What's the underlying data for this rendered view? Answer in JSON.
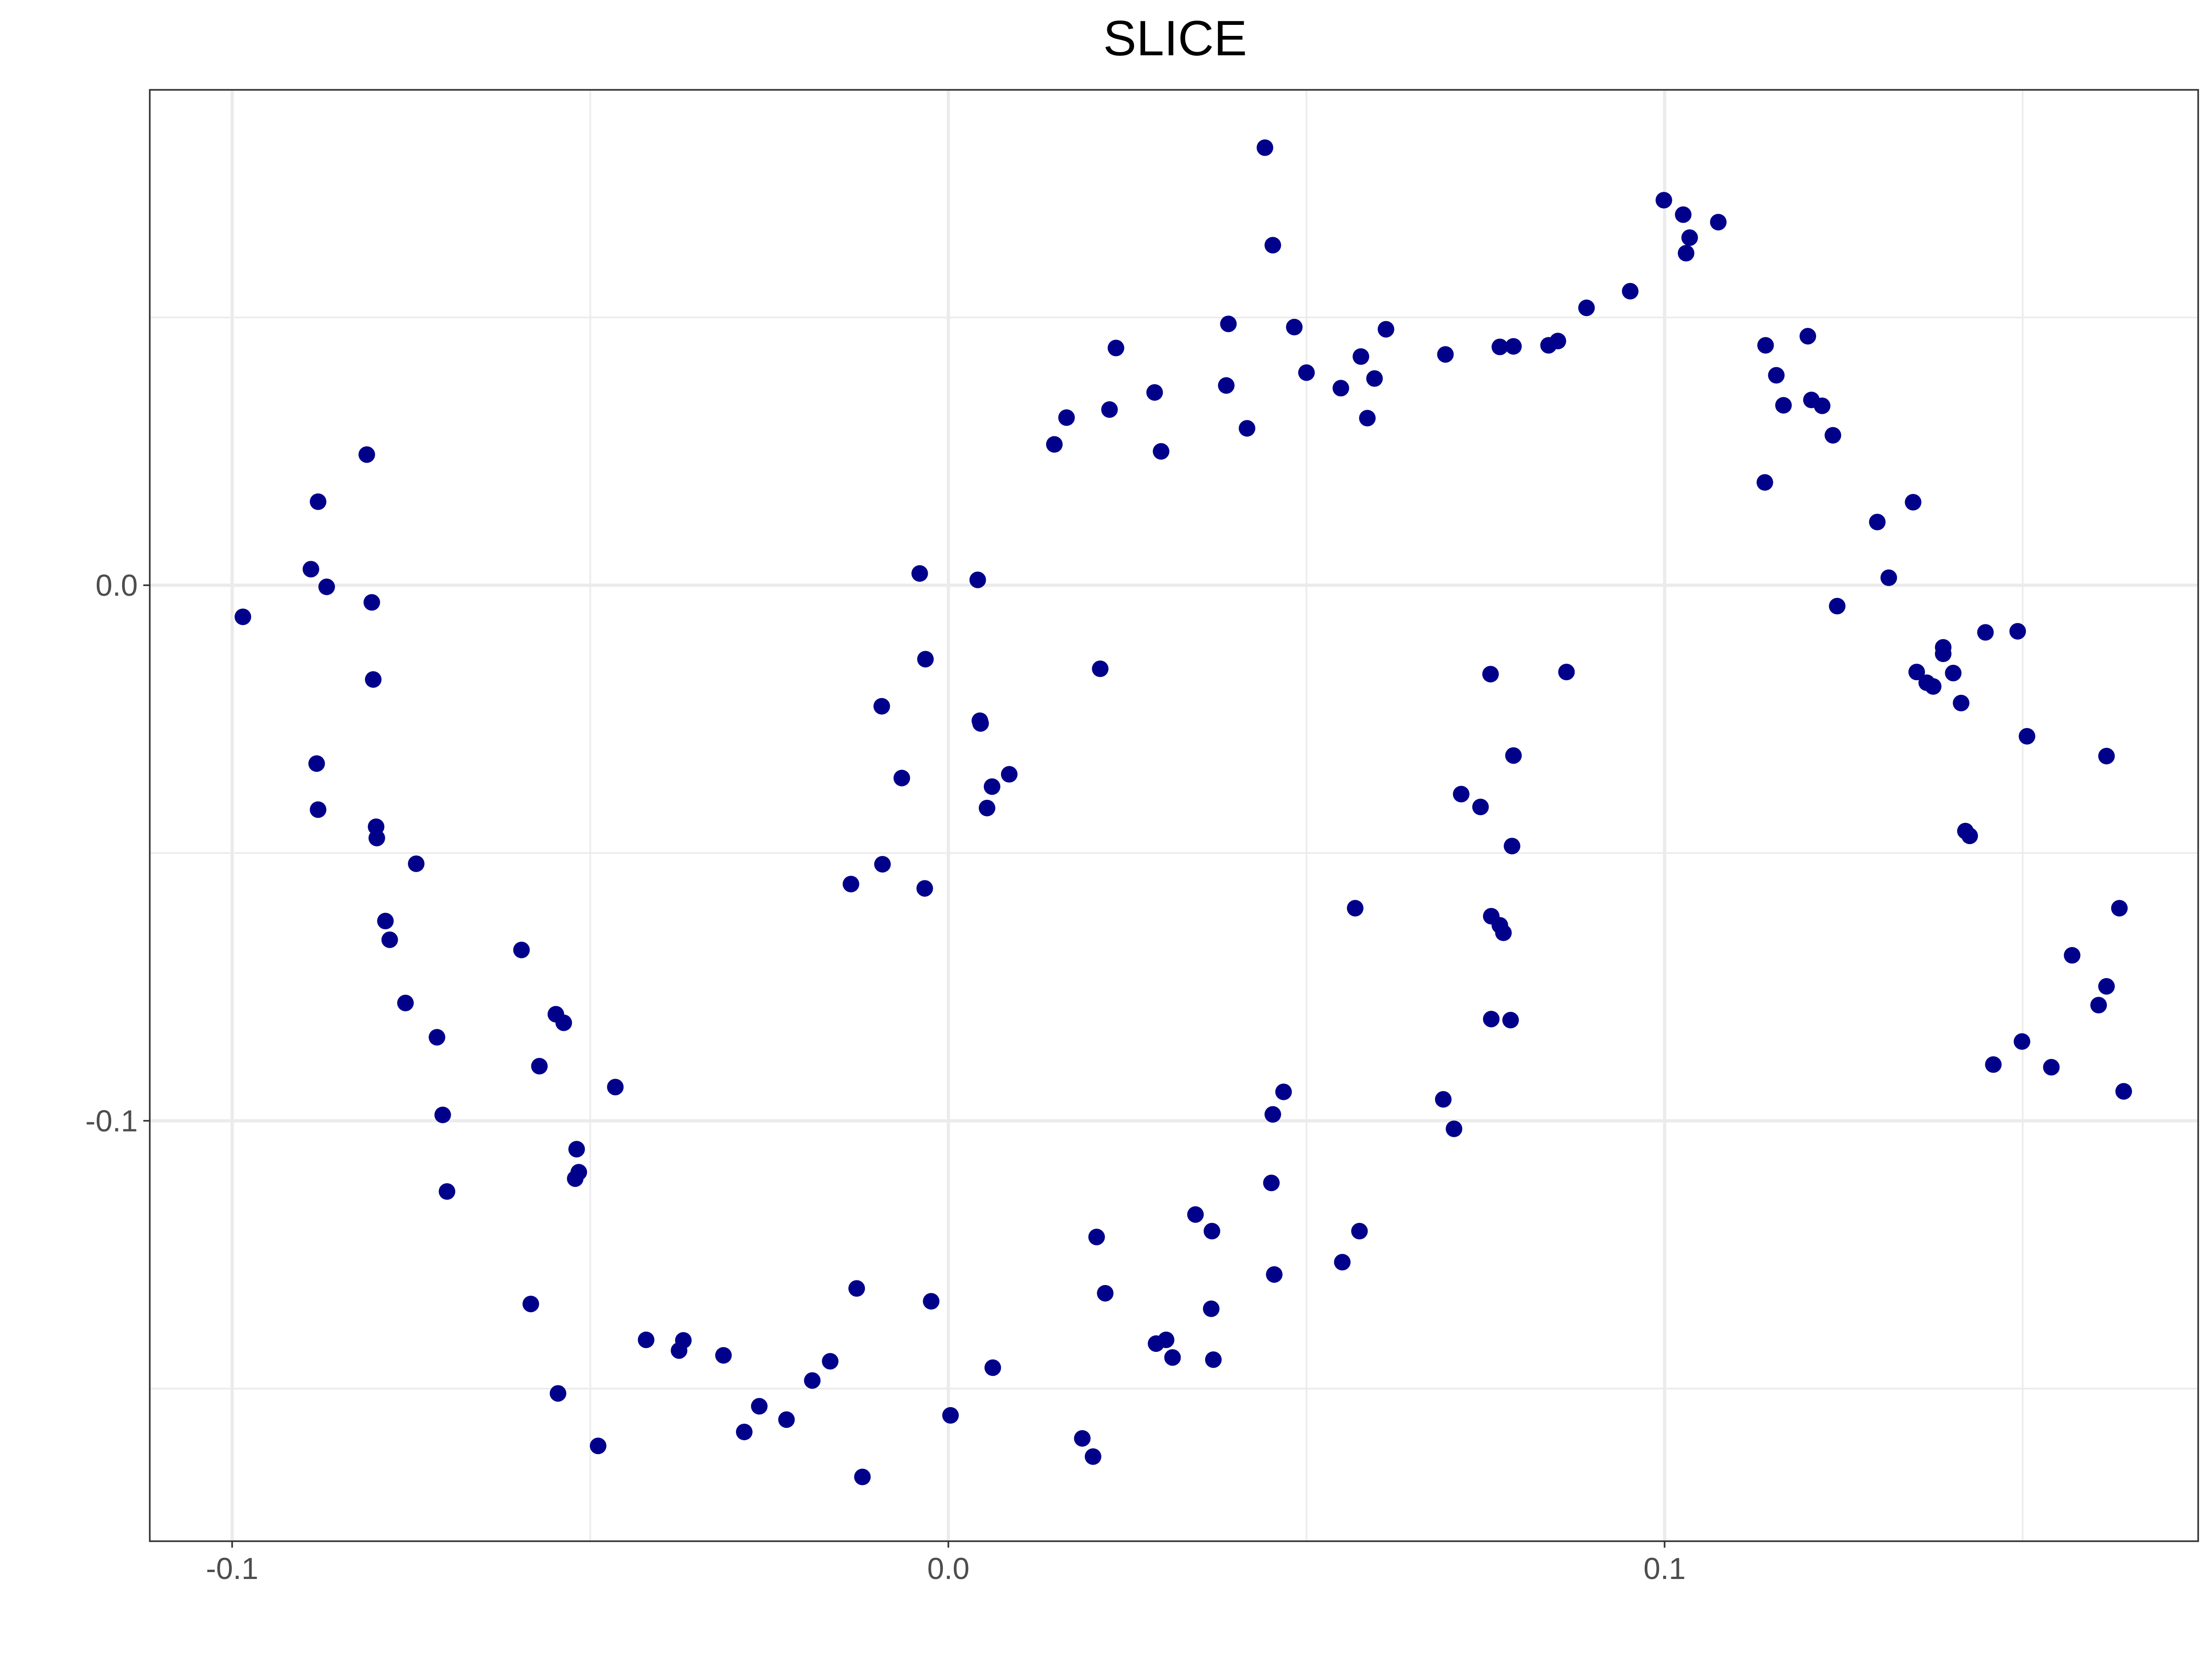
{
  "chart_data": {
    "type": "scatter",
    "title": "SLICE",
    "xlabel": "",
    "ylabel": "",
    "xlim": [
      -0.1115,
      0.1745
    ],
    "ylim": [
      -0.1785,
      0.0925
    ],
    "x_ticks": [
      -0.1,
      0.0,
      0.1
    ],
    "x_tick_labels": [
      "-0.1",
      "0.0",
      "0.1"
    ],
    "y_ticks": [
      0.0,
      -0.1
    ],
    "y_tick_labels": [
      "0.0",
      "-0.1"
    ],
    "grid": true,
    "legend": "none",
    "point_color": "#00008B",
    "x": [
      -0.0985,
      -0.089,
      -0.088,
      -0.0868,
      -0.0882,
      -0.088,
      -0.0812,
      -0.0805,
      -0.0799,
      -0.0803,
      -0.0798,
      -0.0786,
      -0.078,
      -0.0758,
      -0.0743,
      -0.0714,
      -0.0706,
      -0.07,
      -0.0596,
      -0.0571,
      -0.0583,
      -0.0548,
      -0.0537,
      -0.0519,
      -0.0516,
      -0.0521,
      -0.0545,
      -0.0489,
      -0.0465,
      -0.0422,
      -0.037,
      -0.0376,
      -0.0314,
      -0.0285,
      -0.0264,
      -0.0226,
      -0.019,
      -0.0165,
      -0.0136,
      -0.0128,
      -0.012,
      -0.0093,
      -0.0092,
      -0.0065,
      -0.004,
      -0.0033,
      -0.0032,
      -0.0024,
      0.0003,
      0.0041,
      0.0044,
      0.0045,
      0.0054,
      0.0061,
      0.0062,
      0.0085,
      0.0148,
      0.0165,
      0.0225,
      0.0234,
      0.0288,
      0.0297,
      0.0187,
      0.0202,
      0.0212,
      0.0207,
      0.0219,
      0.029,
      0.0304,
      0.0313,
      0.0345,
      0.0368,
      0.0367,
      0.037,
      0.0388,
      0.0391,
      0.0417,
      0.0442,
      0.0453,
      0.0453,
      0.0451,
      0.0455,
      0.0468,
      0.0483,
      0.05,
      0.0548,
      0.055,
      0.0568,
      0.0574,
      0.0576,
      0.0585,
      0.0595,
      0.0611,
      0.0691,
      0.0694,
      0.0706,
      0.0716,
      0.0743,
      0.0758,
      0.0757,
      0.0758,
      0.077,
      0.077,
      0.0775,
      0.0785,
      0.0789,
      0.0787,
      0.0789,
      0.0838,
      0.0851,
      0.0863,
      0.0891,
      0.0952,
      0.0999,
      0.1026,
      0.103,
      0.1035,
      0.1075,
      0.114,
      0.1141,
      0.1156,
      0.1166,
      0.12,
      0.1205,
      0.122,
      0.1235,
      0.1241,
      0.1297,
      0.1313,
      0.1347,
      0.1352,
      0.1366,
      0.1375,
      0.1389,
      0.1389,
      0.1403,
      0.1414,
      0.142,
      0.1426,
      0.1448,
      0.1459,
      0.1493,
      0.1499,
      0.1506,
      0.154,
      0.1569,
      0.1606,
      0.1617,
      0.1617,
      0.1635,
      0.1641,
      0.1641
    ],
    "y": [
      -0.0059,
      0.003,
      0.0156,
      -0.0003,
      -0.0333,
      -0.0419,
      0.0244,
      -0.0032,
      -0.0451,
      -0.0176,
      -0.0472,
      -0.0627,
      -0.0662,
      -0.078,
      -0.052,
      -0.0844,
      -0.0989,
      -0.1132,
      -0.0681,
      -0.0898,
      -0.1342,
      -0.0801,
      -0.0817,
      -0.1053,
      -0.1096,
      -0.1108,
      -0.1509,
      -0.1607,
      -0.0937,
      -0.1409,
      -0.141,
      -0.1429,
      -0.1438,
      -0.1581,
      -0.1533,
      -0.1558,
      -0.1485,
      -0.1449,
      -0.0558,
      -0.1313,
      -0.1665,
      -0.0226,
      -0.0521,
      -0.036,
      0.0022,
      -0.0566,
      -0.0138,
      -0.1337,
      -0.155,
      0.001,
      -0.0253,
      -0.0258,
      -0.0416,
      -0.0376,
      -0.1461,
      -0.0353,
      0.0263,
      0.0313,
      0.0328,
      0.0443,
      0.036,
      0.025,
      -0.1593,
      -0.1627,
      -0.0156,
      -0.1217,
      -0.1322,
      -0.1416,
      -0.1409,
      -0.1442,
      -0.1175,
      -0.1206,
      -0.1351,
      -0.1446,
      0.0373,
      0.0488,
      0.0293,
      0.0817,
      0.0635,
      -0.0988,
      -0.1116,
      -0.1287,
      -0.0946,
      0.0482,
      0.0397,
      0.0368,
      -0.1264,
      -0.0603,
      -0.1206,
      0.0427,
      0.0312,
      0.0386,
      0.0478,
      -0.096,
      0.0431,
      -0.1015,
      -0.039,
      -0.0414,
      -0.0618,
      -0.0166,
      -0.081,
      0.0445,
      -0.0635,
      -0.0649,
      -0.0812,
      -0.0318,
      -0.0487,
      0.0446,
      0.0448,
      0.0456,
      -0.0162,
      0.0518,
      0.0549,
      0.0719,
      0.0692,
      0.062,
      0.0649,
      0.0678,
      0.0192,
      0.0448,
      0.0392,
      0.0336,
      0.0465,
      0.0346,
      0.0335,
      0.028,
      -0.0039,
      0.0118,
      0.0014,
      0.0155,
      -0.0162,
      -0.0182,
      -0.0189,
      -0.0116,
      -0.0128,
      -0.0164,
      -0.022,
      -0.0459,
      -0.0468,
      -0.0088,
      -0.0895,
      -0.0086,
      -0.0852,
      -0.0282,
      -0.09,
      -0.0691,
      -0.0784,
      -0.0319,
      -0.0749,
      -0.0603,
      -0.0945,
      -0.0945
    ]
  }
}
